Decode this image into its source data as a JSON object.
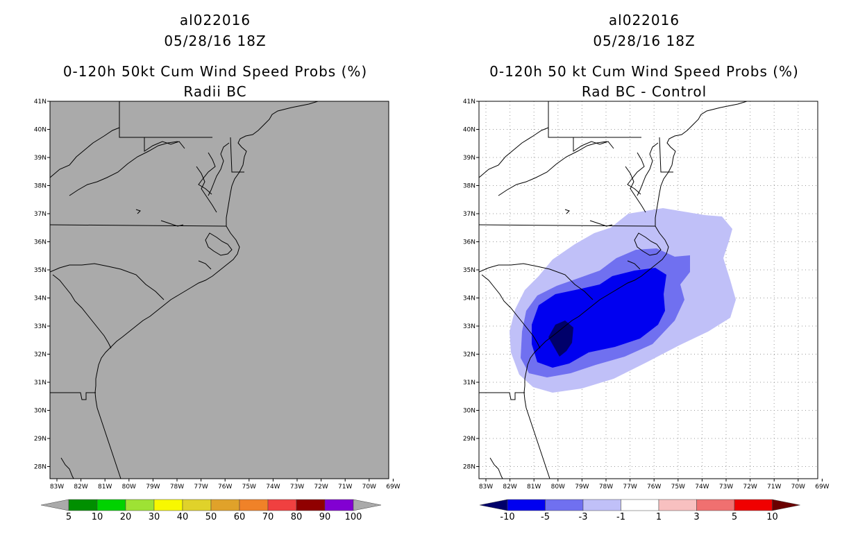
{
  "left_panel": {
    "storm_id": "al022016",
    "datetime": "05/28/16 18Z",
    "product": "0-120h 50kt Cum Wind Speed Probs (%)",
    "subtitle": "Radii BC",
    "map_fill": "#aaaaaa",
    "colorbar": {
      "colors": [
        "#008f00",
        "#00d200",
        "#9ee234",
        "#f8f800",
        "#e0d22a",
        "#e0a22a",
        "#f08228",
        "#f04040",
        "#900000",
        "#8200d2"
      ],
      "labels": [
        "5",
        "10",
        "20",
        "30",
        "40",
        "50",
        "60",
        "70",
        "80",
        "90",
        "100"
      ],
      "extend_color": "#aaaaaa"
    }
  },
  "right_panel": {
    "storm_id": "al022016",
    "datetime": "05/28/16 18Z",
    "product": "0-120h 50 kt Cum Wind Speed Probs (%)",
    "subtitle": "Rad BC - Control",
    "colorbar": {
      "colors": [
        "#0000f0",
        "#7070f0",
        "#c0c0f8",
        "#ffffff",
        "#f8c0c0",
        "#f07070",
        "#f00000"
      ],
      "labels": [
        "-10",
        "-5",
        "-3",
        "-1",
        "1",
        "3",
        "5",
        "10"
      ],
      "low_extend": "#00006a",
      "high_extend": "#6a0000"
    },
    "contour_colors": {
      "lt_-1": "#c0c0f8",
      "lt_-3": "#7070f0",
      "lt_-5": "#0000f0",
      "lt_-10": "#00006a"
    }
  },
  "axes": {
    "lon_labels": [
      "83W",
      "82W",
      "81W",
      "80W",
      "79W",
      "78W",
      "77W",
      "76W",
      "75W",
      "74W",
      "73W",
      "72W",
      "71W",
      "70W",
      "69W"
    ],
    "lat_labels": [
      "41N",
      "40N",
      "39N",
      "38N",
      "37N",
      "36N",
      "35N",
      "34N",
      "33N",
      "32N",
      "31N",
      "30N",
      "29N",
      "28N"
    ]
  }
}
